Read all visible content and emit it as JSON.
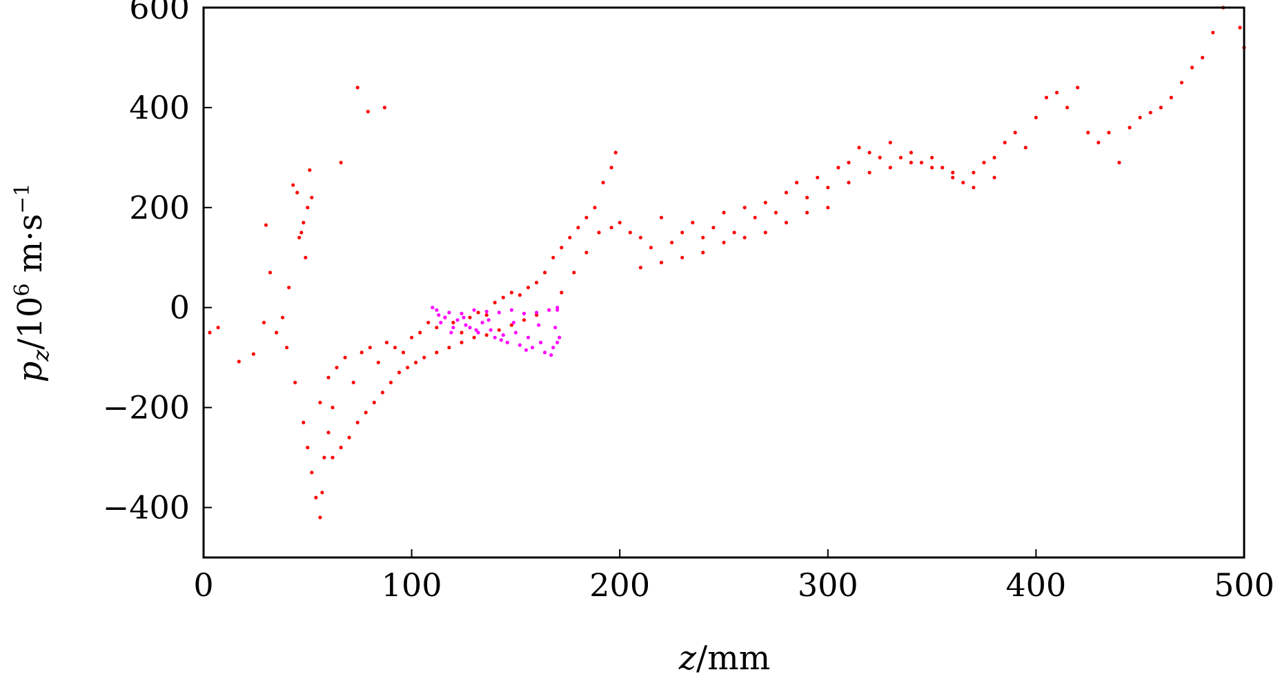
{
  "chart_data": {
    "type": "scatter",
    "title": "",
    "xlabel": {
      "var": "z",
      "unit": "mm"
    },
    "ylabel": {
      "var": "p",
      "sub": "z",
      "unit_base": "10",
      "unit_exp": "6",
      "unit_rest": "m·s",
      "unit_rest_exp": "−1"
    },
    "xlim": [
      0,
      500
    ],
    "ylim": [
      -500,
      600
    ],
    "x_ticks": [
      0,
      100,
      200,
      300,
      400,
      500
    ],
    "y_ticks": [
      600,
      400,
      200,
      0,
      -200,
      -400
    ],
    "x_tick_labels": [
      "0",
      "100",
      "200",
      "300",
      "400",
      "500"
    ],
    "y_tick_labels": [
      "600",
      "400",
      "200",
      "0",
      "−200",
      "−400"
    ],
    "grid": false,
    "legend": "none",
    "series": [
      {
        "color": "#ff0000",
        "values": [
          [
            3,
            -50
          ],
          [
            7,
            -40
          ],
          [
            17,
            -108
          ],
          [
            24,
            -93
          ],
          [
            29,
            -30
          ],
          [
            30,
            165
          ],
          [
            32,
            70
          ],
          [
            35,
            -50
          ],
          [
            40,
            -80
          ],
          [
            43,
            245
          ],
          [
            45,
            230
          ],
          [
            47,
            150
          ],
          [
            48,
            170
          ],
          [
            50,
            200
          ],
          [
            51,
            275
          ],
          [
            52,
            220
          ],
          [
            46,
            140
          ],
          [
            49,
            100
          ],
          [
            41,
            40
          ],
          [
            38,
            -20
          ],
          [
            44,
            -150
          ],
          [
            48,
            -230
          ],
          [
            50,
            -280
          ],
          [
            52,
            -330
          ],
          [
            54,
            -380
          ],
          [
            56,
            -420
          ],
          [
            57,
            -370
          ],
          [
            58,
            -300
          ],
          [
            60,
            -250
          ],
          [
            62,
            -200
          ],
          [
            66,
            290
          ],
          [
            74,
            440
          ],
          [
            79,
            392
          ],
          [
            87,
            400
          ],
          [
            56,
            -190
          ],
          [
            60,
            -140
          ],
          [
            64,
            -120
          ],
          [
            68,
            -100
          ],
          [
            72,
            -150
          ],
          [
            76,
            -90
          ],
          [
            80,
            -80
          ],
          [
            84,
            -110
          ],
          [
            88,
            -70
          ],
          [
            92,
            -80
          ],
          [
            96,
            -90
          ],
          [
            100,
            -60
          ],
          [
            104,
            -50
          ],
          [
            108,
            -30
          ],
          [
            112,
            -40
          ],
          [
            116,
            -20
          ],
          [
            120,
            -30
          ],
          [
            124,
            -50
          ],
          [
            128,
            -20
          ],
          [
            132,
            -10
          ],
          [
            136,
            -15
          ],
          [
            140,
            10
          ],
          [
            144,
            20
          ],
          [
            148,
            30
          ],
          [
            152,
            25
          ],
          [
            156,
            40
          ],
          [
            160,
            50
          ],
          [
            164,
            70
          ],
          [
            168,
            100
          ],
          [
            172,
            120
          ],
          [
            176,
            140
          ],
          [
            180,
            160
          ],
          [
            184,
            180
          ],
          [
            188,
            200
          ],
          [
            192,
            250
          ],
          [
            196,
            280
          ],
          [
            198,
            310
          ],
          [
            62,
            -300
          ],
          [
            66,
            -280
          ],
          [
            70,
            -260
          ],
          [
            74,
            -230
          ],
          [
            78,
            -210
          ],
          [
            82,
            -190
          ],
          [
            86,
            -170
          ],
          [
            90,
            -150
          ],
          [
            94,
            -130
          ],
          [
            98,
            -120
          ],
          [
            102,
            -110
          ],
          [
            106,
            -100
          ],
          [
            112,
            -90
          ],
          [
            118,
            -80
          ],
          [
            124,
            -70
          ],
          [
            130,
            -60
          ],
          [
            136,
            -55
          ],
          [
            142,
            -45
          ],
          [
            148,
            -35
          ],
          [
            154,
            -25
          ],
          [
            160,
            -15
          ],
          [
            166,
            -5
          ],
          [
            172,
            30
          ],
          [
            178,
            70
          ],
          [
            184,
            110
          ],
          [
            190,
            150
          ],
          [
            196,
            160
          ],
          [
            200,
            170
          ],
          [
            205,
            150
          ],
          [
            210,
            140
          ],
          [
            215,
            120
          ],
          [
            220,
            180
          ],
          [
            225,
            130
          ],
          [
            230,
            150
          ],
          [
            235,
            170
          ],
          [
            240,
            140
          ],
          [
            245,
            160
          ],
          [
            250,
            190
          ],
          [
            255,
            150
          ],
          [
            260,
            200
          ],
          [
            265,
            180
          ],
          [
            270,
            210
          ],
          [
            275,
            190
          ],
          [
            280,
            230
          ],
          [
            285,
            250
          ],
          [
            290,
            220
          ],
          [
            295,
            260
          ],
          [
            300,
            240
          ],
          [
            305,
            280
          ],
          [
            310,
            290
          ],
          [
            315,
            320
          ],
          [
            320,
            310
          ],
          [
            325,
            300
          ],
          [
            330,
            330
          ],
          [
            335,
            300
          ],
          [
            340,
            310
          ],
          [
            345,
            290
          ],
          [
            350,
            300
          ],
          [
            355,
            280
          ],
          [
            360,
            260
          ],
          [
            365,
            250
          ],
          [
            370,
            270
          ],
          [
            375,
            290
          ],
          [
            380,
            300
          ],
          [
            385,
            330
          ],
          [
            390,
            350
          ],
          [
            395,
            320
          ],
          [
            400,
            380
          ],
          [
            405,
            420
          ],
          [
            410,
            430
          ],
          [
            415,
            400
          ],
          [
            420,
            440
          ],
          [
            425,
            350
          ],
          [
            430,
            330
          ],
          [
            435,
            350
          ],
          [
            440,
            290
          ],
          [
            445,
            360
          ],
          [
            450,
            380
          ],
          [
            455,
            390
          ],
          [
            460,
            400
          ],
          [
            465,
            420
          ],
          [
            470,
            450
          ],
          [
            475,
            480
          ],
          [
            480,
            500
          ],
          [
            485,
            550
          ],
          [
            490,
            600
          ],
          [
            494,
            620
          ],
          [
            498,
            560
          ],
          [
            500,
            520
          ],
          [
            210,
            80
          ],
          [
            220,
            90
          ],
          [
            230,
            100
          ],
          [
            240,
            110
          ],
          [
            250,
            130
          ],
          [
            260,
            140
          ],
          [
            270,
            150
          ],
          [
            280,
            170
          ],
          [
            290,
            190
          ],
          [
            300,
            200
          ],
          [
            310,
            250
          ],
          [
            320,
            270
          ],
          [
            330,
            280
          ],
          [
            340,
            290
          ],
          [
            350,
            280
          ],
          [
            360,
            270
          ],
          [
            370,
            240
          ],
          [
            380,
            260
          ]
        ]
      },
      {
        "color": "#ff00ff",
        "values": [
          [
            112,
            -5
          ],
          [
            118,
            -10
          ],
          [
            124,
            -12
          ],
          [
            130,
            -5
          ],
          [
            136,
            -8
          ],
          [
            142,
            -10
          ],
          [
            148,
            -5
          ],
          [
            154,
            -12
          ],
          [
            160,
            -10
          ],
          [
            166,
            -5
          ],
          [
            170,
            -5
          ],
          [
            114,
            -30
          ],
          [
            120,
            -40
          ],
          [
            126,
            -35
          ],
          [
            132,
            -50
          ],
          [
            138,
            -45
          ],
          [
            144,
            -55
          ],
          [
            150,
            -50
          ],
          [
            156,
            -60
          ],
          [
            162,
            -70
          ],
          [
            168,
            -80
          ],
          [
            116,
            -20
          ],
          [
            122,
            -25
          ],
          [
            128,
            -40
          ],
          [
            134,
            -30
          ],
          [
            140,
            -60
          ],
          [
            146,
            -70
          ],
          [
            152,
            -75
          ],
          [
            158,
            -80
          ],
          [
            164,
            -90
          ],
          [
            170,
            -70
          ],
          [
            113,
            -15
          ],
          [
            125,
            -20
          ],
          [
            137,
            -25
          ],
          [
            149,
            -30
          ],
          [
            161,
            -35
          ],
          [
            169,
            -40
          ],
          [
            119,
            -50
          ],
          [
            131,
            -45
          ],
          [
            143,
            -65
          ],
          [
            155,
            -85
          ],
          [
            167,
            -95
          ],
          [
            171,
            -60
          ],
          [
            110,
            0
          ],
          [
            170,
            0
          ]
        ]
      }
    ]
  }
}
